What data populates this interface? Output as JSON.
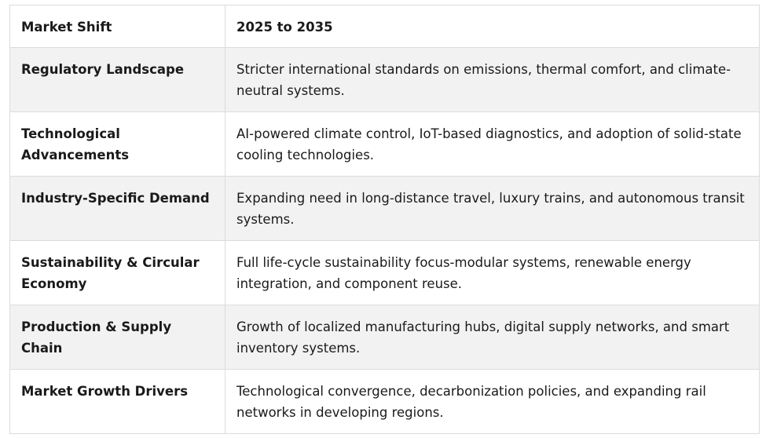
{
  "table": {
    "headers": [
      "Market Shift",
      "2025 to 2035"
    ],
    "rows": [
      {
        "label": "Regulatory Landscape",
        "value": "Stricter international standards on emissions, thermal comfort, and climate-neutral systems."
      },
      {
        "label": "Technological Advancements",
        "value": "AI-powered climate control, IoT-based diagnostics, and adoption of solid-state cooling technologies."
      },
      {
        "label": "Industry-Specific Demand",
        "value": "Expanding need in long-distance travel, luxury trains, and autonomous transit systems."
      },
      {
        "label": "Sustainability & Circular Economy",
        "value": "Full life-cycle sustainability focus-modular systems, renewable energy integration, and component reuse."
      },
      {
        "label": "Production & Supply Chain",
        "value": "Growth of localized manufacturing hubs, digital supply networks, and smart inventory systems."
      },
      {
        "label": "Market Growth Drivers",
        "value": "Technological convergence, decarbonization policies, and expanding rail networks in developing regions."
      }
    ]
  }
}
